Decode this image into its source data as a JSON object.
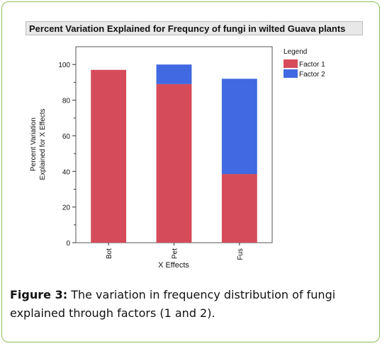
{
  "figure": {
    "caption_label": "Figure 3:",
    "caption_text": " The variation in frequency distribution of fungi explained through factors (1 and 2)."
  },
  "chart_data": {
    "type": "bar",
    "stacked": true,
    "title": "Percent Variation Explained for Frequncy of fungi in wilted Guava plants",
    "xlabel": "X Effects",
    "ylabel_line1": "Percent Variation",
    "ylabel_line2": "Explained for X Effects",
    "categories": [
      "Bot",
      "Pet",
      "Fus"
    ],
    "series": [
      {
        "name": "Factor 1",
        "color": "#d64b5a",
        "values": [
          97,
          89,
          38.5
        ]
      },
      {
        "name": "Factor 2",
        "color": "#4169e1",
        "values": [
          0,
          11,
          53.5
        ]
      }
    ],
    "ylim": [
      0,
      110
    ],
    "yticks": [
      0,
      20,
      40,
      60,
      80,
      100
    ],
    "legend_title": "Legend",
    "legend_position": "right",
    "grid": false
  }
}
